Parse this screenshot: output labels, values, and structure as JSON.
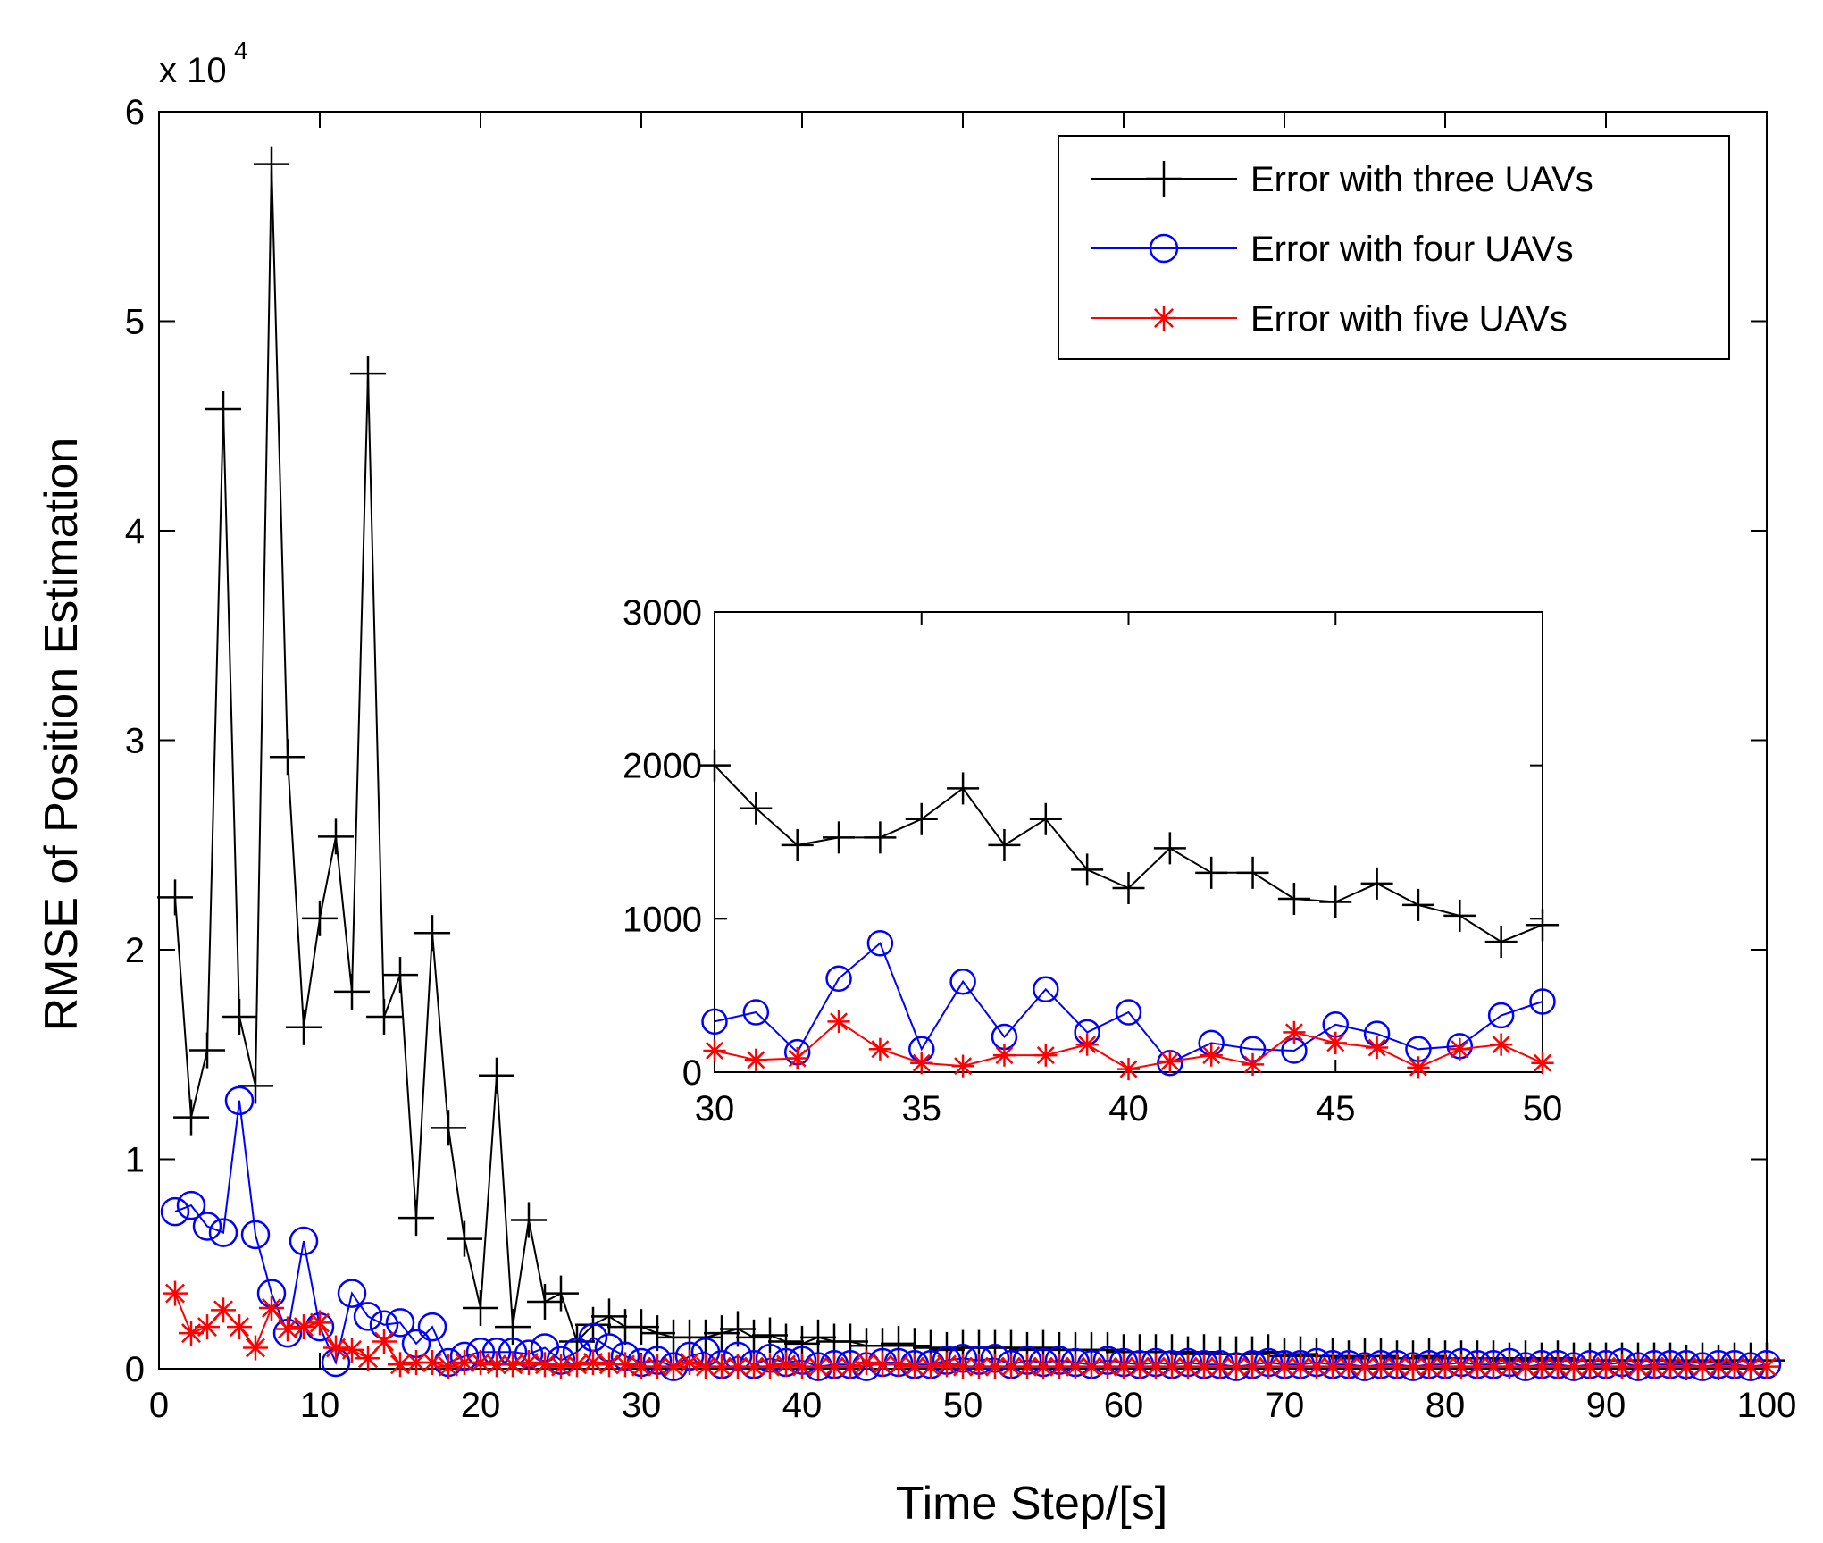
{
  "chart_data": [
    {
      "id": "main",
      "type": "line",
      "xlabel": "Time Step/[s]",
      "ylabel": "RMSE of Position Estimation",
      "xlim": [
        0,
        100
      ],
      "ylim": [
        0,
        6
      ],
      "y_exponent_label": "x 10",
      "y_exponent_power": "4",
      "xticks": [
        0,
        10,
        20,
        30,
        40,
        50,
        60,
        70,
        80,
        90,
        100
      ],
      "yticks": [
        0,
        1,
        2,
        3,
        4,
        5,
        6
      ],
      "legend_position": "top-right",
      "series": [
        {
          "name": "Error with three UAVs",
          "color": "#000000",
          "marker": "plus",
          "x": [
            1,
            2,
            3,
            4,
            5,
            6,
            7,
            8,
            9,
            10,
            11,
            12,
            13,
            14,
            15,
            16,
            17,
            18,
            19,
            20,
            21,
            22,
            23,
            24,
            25,
            26,
            27,
            28,
            29,
            30,
            31,
            32,
            33,
            34,
            35,
            36,
            37,
            38,
            39,
            40,
            41,
            42,
            43,
            44,
            45,
            46,
            47,
            48,
            49,
            50,
            51,
            52,
            53,
            54,
            55,
            56,
            57,
            58,
            59,
            60,
            61,
            62,
            63,
            64,
            65,
            66,
            67,
            68,
            69,
            70,
            71,
            72,
            73,
            74,
            75,
            76,
            77,
            78,
            79,
            80,
            81,
            82,
            83,
            84,
            85,
            86,
            87,
            88,
            89,
            90,
            91,
            92,
            93,
            94,
            95,
            96,
            97,
            98,
            99,
            100
          ],
          "values": [
            2.25,
            1.2,
            1.52,
            4.58,
            1.68,
            1.35,
            5.75,
            2.92,
            1.63,
            2.15,
            2.54,
            1.8,
            4.75,
            1.68,
            1.88,
            0.72,
            2.08,
            1.15,
            0.62,
            0.29,
            1.4,
            0.2,
            0.71,
            0.32,
            0.36,
            0.13,
            0.21,
            0.25,
            0.2,
            0.2,
            0.17,
            0.15,
            0.15,
            0.15,
            0.17,
            0.19,
            0.15,
            0.16,
            0.13,
            0.12,
            0.15,
            0.13,
            0.13,
            0.11,
            0.11,
            0.12,
            0.11,
            0.1,
            0.09,
            0.1,
            0.1,
            0.1,
            0.1,
            0.09,
            0.1,
            0.09,
            0.09,
            0.09,
            0.09,
            0.08,
            0.08,
            0.08,
            0.08,
            0.07,
            0.08,
            0.07,
            0.07,
            0.07,
            0.08,
            0.06,
            0.07,
            0.06,
            0.06,
            0.05,
            0.06,
            0.06,
            0.05,
            0.05,
            0.06,
            0.05,
            0.05,
            0.05,
            0.05,
            0.04,
            0.05,
            0.04,
            0.05,
            0.04,
            0.04,
            0.04,
            0.04,
            0.04,
            0.04,
            0.04,
            0.03,
            0.04,
            0.03,
            0.04,
            0.04,
            0.04
          ]
        },
        {
          "name": "Error with four UAVs",
          "color": "#0000ff",
          "marker": "circle",
          "x": [
            1,
            2,
            3,
            4,
            5,
            6,
            7,
            8,
            9,
            10,
            11,
            12,
            13,
            14,
            15,
            16,
            17,
            18,
            19,
            20,
            21,
            22,
            23,
            24,
            25,
            26,
            27,
            28,
            29,
            30,
            31,
            32,
            33,
            34,
            35,
            36,
            37,
            38,
            39,
            40,
            41,
            42,
            43,
            44,
            45,
            46,
            47,
            48,
            49,
            50,
            51,
            52,
            53,
            54,
            55,
            56,
            57,
            58,
            59,
            60,
            61,
            62,
            63,
            64,
            65,
            66,
            67,
            68,
            69,
            70,
            71,
            72,
            73,
            74,
            75,
            76,
            77,
            78,
            79,
            80,
            81,
            82,
            83,
            84,
            85,
            86,
            87,
            88,
            89,
            90,
            91,
            92,
            93,
            94,
            95,
            96,
            97,
            98,
            99,
            100
          ],
          "values": [
            0.75,
            0.78,
            0.68,
            0.65,
            1.28,
            0.64,
            0.36,
            0.17,
            0.61,
            0.2,
            0.03,
            0.36,
            0.25,
            0.21,
            0.22,
            0.12,
            0.2,
            0.03,
            0.06,
            0.08,
            0.08,
            0.08,
            0.07,
            0.1,
            0.04,
            0.08,
            0.15,
            0.1,
            0.06,
            0.03,
            0.04,
            0.01,
            0.06,
            0.08,
            0.02,
            0.06,
            0.02,
            0.05,
            0.03,
            0.04,
            0.01,
            0.02,
            0.02,
            0.01,
            0.03,
            0.03,
            0.02,
            0.02,
            0.04,
            0.05,
            0.04,
            0.05,
            0.02,
            0.04,
            0.03,
            0.04,
            0.03,
            0.02,
            0.04,
            0.03,
            0.02,
            0.03,
            0.02,
            0.03,
            0.02,
            0.02,
            0.01,
            0.02,
            0.03,
            0.02,
            0.02,
            0.03,
            0.02,
            0.02,
            0.01,
            0.02,
            0.02,
            0.01,
            0.02,
            0.02,
            0.03,
            0.02,
            0.02,
            0.03,
            0.01,
            0.02,
            0.02,
            0.01,
            0.02,
            0.02,
            0.03,
            0.01,
            0.02,
            0.02,
            0.02,
            0.01,
            0.02,
            0.02,
            0.01,
            0.02
          ]
        },
        {
          "name": "Error with five UAVs",
          "color": "#ff0000",
          "marker": "asterisk",
          "x": [
            1,
            2,
            3,
            4,
            5,
            6,
            7,
            8,
            9,
            10,
            11,
            12,
            13,
            14,
            15,
            16,
            17,
            18,
            19,
            20,
            21,
            22,
            23,
            24,
            25,
            26,
            27,
            28,
            29,
            30,
            31,
            32,
            33,
            34,
            35,
            36,
            37,
            38,
            39,
            40,
            41,
            42,
            43,
            44,
            45,
            46,
            47,
            48,
            49,
            50,
            51,
            52,
            53,
            54,
            55,
            56,
            57,
            58,
            59,
            60,
            61,
            62,
            63,
            64,
            65,
            66,
            67,
            68,
            69,
            70,
            71,
            72,
            73,
            74,
            75,
            76,
            77,
            78,
            79,
            80,
            81,
            82,
            83,
            84,
            85,
            86,
            87,
            88,
            89,
            90,
            91,
            92,
            93,
            94,
            95,
            96,
            97,
            98,
            99,
            100
          ],
          "values": [
            0.36,
            0.17,
            0.2,
            0.28,
            0.2,
            0.1,
            0.29,
            0.19,
            0.2,
            0.22,
            0.1,
            0.09,
            0.05,
            0.13,
            0.02,
            0.03,
            0.03,
            0.01,
            0.03,
            0.03,
            0.02,
            0.02,
            0.03,
            0.02,
            0.01,
            0.02,
            0.03,
            0.02,
            0.02,
            0.01,
            0.01,
            0.01,
            0.03,
            0.01,
            0.01,
            0.01,
            0.01,
            0.01,
            0.02,
            0.01,
            0.01,
            0.01,
            0.01,
            0.03,
            0.02,
            0.02,
            0.01,
            0.01,
            0.02,
            0.01,
            0.01,
            0.01,
            0.01,
            0.01,
            0.01,
            0.01,
            0.01,
            0.01,
            0.01,
            0.01,
            0.01,
            0.01,
            0.01,
            0.01,
            0.01,
            0.01,
            0.01,
            0.01,
            0.01,
            0.01,
            0.01,
            0.01,
            0.01,
            0.01,
            0.01,
            0.01,
            0.01,
            0.01,
            0.01,
            0.01,
            0.01,
            0.01,
            0.01,
            0.01,
            0.01,
            0.01,
            0.01,
            0.01,
            0.01,
            0.01,
            0.01,
            0.01,
            0.01,
            0.01,
            0.01,
            0.01,
            0.01,
            0.01,
            0.01,
            0.01
          ]
        }
      ]
    },
    {
      "id": "inset",
      "type": "line",
      "xlim": [
        30,
        50
      ],
      "ylim": [
        0,
        3000
      ],
      "xticks": [
        30,
        35,
        40,
        45,
        50
      ],
      "yticks": [
        0,
        1000,
        2000,
        3000
      ],
      "series": [
        {
          "name": "Error with three UAVs",
          "color": "#000000",
          "marker": "plus",
          "x": [
            30,
            31,
            32,
            33,
            34,
            35,
            36,
            37,
            38,
            39,
            40,
            41,
            42,
            43,
            44,
            45,
            46,
            47,
            48,
            49,
            50
          ],
          "values": [
            2000,
            1720,
            1480,
            1530,
            1530,
            1650,
            1850,
            1480,
            1650,
            1320,
            1200,
            1460,
            1300,
            1300,
            1130,
            1110,
            1230,
            1090,
            1020,
            850,
            960
          ]
        },
        {
          "name": "Error with four UAVs",
          "color": "#0000ff",
          "marker": "circle",
          "x": [
            30,
            31,
            32,
            33,
            34,
            35,
            36,
            37,
            38,
            39,
            40,
            41,
            42,
            43,
            44,
            45,
            46,
            47,
            48,
            49,
            50
          ],
          "values": [
            330,
            390,
            130,
            610,
            840,
            150,
            590,
            230,
            540,
            260,
            390,
            60,
            190,
            150,
            140,
            310,
            250,
            150,
            170,
            370,
            460
          ]
        },
        {
          "name": "Error with five UAVs",
          "color": "#ff0000",
          "marker": "asterisk",
          "x": [
            30,
            31,
            32,
            33,
            34,
            35,
            36,
            37,
            38,
            39,
            40,
            41,
            42,
            43,
            44,
            45,
            46,
            47,
            48,
            49,
            50
          ],
          "values": [
            140,
            80,
            90,
            330,
            150,
            60,
            40,
            110,
            110,
            180,
            20,
            70,
            110,
            50,
            260,
            190,
            160,
            30,
            150,
            180,
            60
          ]
        }
      ]
    }
  ]
}
